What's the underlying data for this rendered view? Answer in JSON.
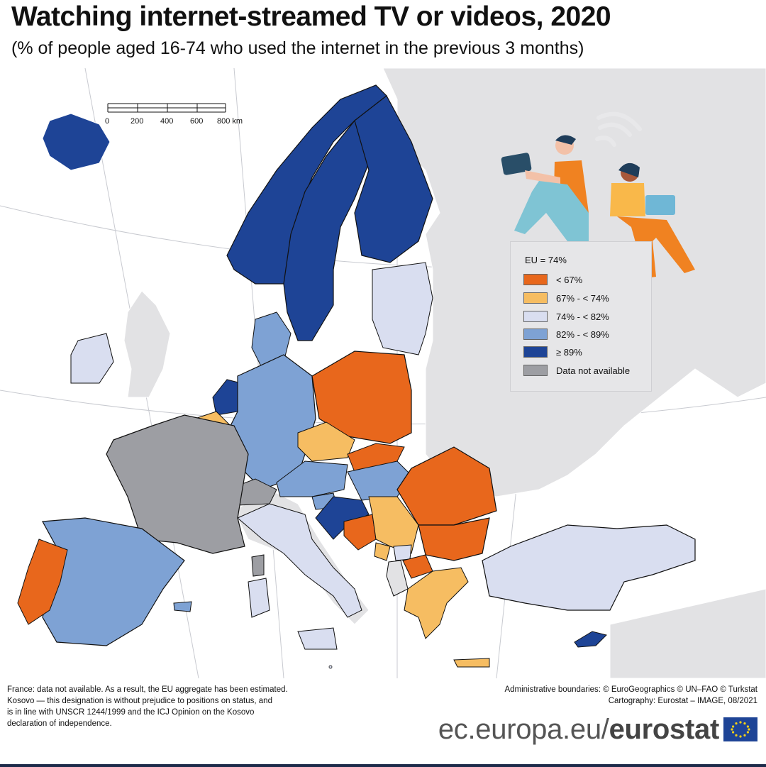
{
  "header": {
    "title": "Watching internet-streamed TV or videos, 2020",
    "subtitle": "(% of people aged 16-74 who used the internet in the previous 3 months)"
  },
  "legend": {
    "heading": "EU = 74%",
    "items": [
      {
        "label": "< 67%",
        "color": "#e8671c"
      },
      {
        "label": "67% - < 74%",
        "color": "#f6bd62"
      },
      {
        "label": "74% - < 82%",
        "color": "#d9def0"
      },
      {
        "label": "82% - < 89%",
        "color": "#7ea2d4"
      },
      {
        "label": "≥ 89%",
        "color": "#1e4496"
      },
      {
        "label": "Data not available",
        "color": "#9d9ea3"
      }
    ]
  },
  "scale": {
    "ticks": [
      "0",
      "200",
      "400",
      "600"
    ],
    "end_label": "800 km"
  },
  "notes": {
    "left": [
      "France: data not available. As a result, the EU aggregate has been estimated.",
      "Kosovo — this designation is without prejudice to positions on status, and",
      "is in line with UNSCR 1244/1999 and the ICJ Opinion on the Kosovo",
      "declaration of independence."
    ],
    "right": [
      "Administrative boundaries: © EuroGeographics © UN–FAO © Turkstat",
      "Cartography: Eurostat – IMAGE, 08/2021"
    ]
  },
  "brand": {
    "domain": "ec.europa.eu/",
    "name": "eurostat"
  },
  "colors": {
    "background_land": "#e2e2e4",
    "sea": "#ffffff",
    "border": "#111111"
  }
}
